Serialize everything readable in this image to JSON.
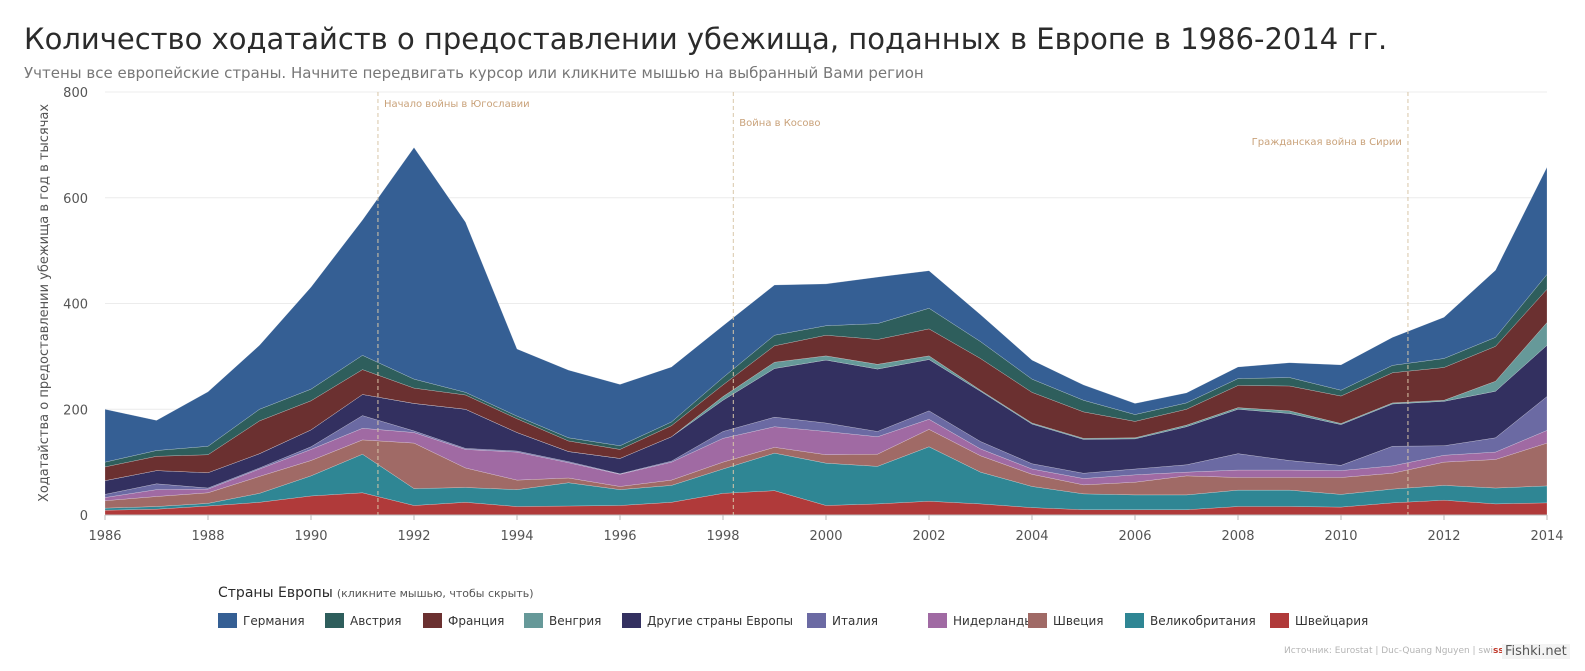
{
  "title": "Количество ходатайств о предоставлении убежища, поданных в Европе в 1986-2014 гг.",
  "subtitle": "Учтены все европейские страны. Начните передвигать курсор или кликните мышью на выбранный Вами регион",
  "legend": {
    "title": "Страны Европы",
    "hint": "(кликните мышью, чтобы скрыть)"
  },
  "source": "Источник: Eurostat | Duc-Quang Nguyen | swi",
  "source_suffix": "ssinfo.ch",
  "watermark": "Fishki.net",
  "chart_data": {
    "type": "area",
    "stacked": true,
    "ylabel": "Ходатайства о предоставлении убежища в год в тысячах",
    "xlabel": "",
    "ylim": [
      0,
      800
    ],
    "yticks": [
      0,
      200,
      400,
      600,
      800
    ],
    "xticks": [
      1986,
      1988,
      1990,
      1992,
      1994,
      1996,
      1998,
      2000,
      2002,
      2004,
      2006,
      2008,
      2010,
      2012,
      2014
    ],
    "x": [
      1986,
      1987,
      1988,
      1989,
      1990,
      1991,
      1992,
      1993,
      1994,
      1995,
      1996,
      1997,
      1998,
      1999,
      2000,
      2001,
      2002,
      2003,
      2004,
      2005,
      2006,
      2007,
      2008,
      2009,
      2010,
      2011,
      2012,
      2013,
      2014
    ],
    "grid": true,
    "events": [
      {
        "year": 1991.3,
        "label": "Начало войны в Югославии"
      },
      {
        "year": 1998.2,
        "label": "Война в Косово"
      },
      {
        "year": 2011.3,
        "label": "Гражданская война в Сирии"
      }
    ],
    "series": [
      {
        "name": "Швейцария",
        "color": "#b03a3a",
        "values": [
          9,
          11,
          17,
          24,
          36,
          42,
          18,
          24,
          16,
          17,
          18,
          24,
          41,
          46,
          18,
          21,
          26,
          21,
          14,
          10,
          10,
          10,
          16,
          16,
          15,
          23,
          28,
          21,
          23
        ]
      },
      {
        "name": "Великобритания",
        "color": "#2f8694",
        "values": [
          4,
          5,
          5,
          17,
          38,
          73,
          32,
          28,
          32,
          44,
          30,
          32,
          46,
          71,
          80,
          71,
          103,
          60,
          40,
          30,
          28,
          28,
          31,
          31,
          24,
          26,
          28,
          30,
          32
        ]
      },
      {
        "name": "Швеция",
        "color": "#a06a66",
        "values": [
          14,
          19,
          20,
          32,
          29,
          27,
          86,
          37,
          18,
          9,
          6,
          10,
          13,
          11,
          16,
          23,
          33,
          31,
          23,
          17,
          24,
          36,
          24,
          24,
          32,
          30,
          44,
          54,
          81
        ]
      },
      {
        "name": "Нидерланды",
        "color": "#a06aa3",
        "values": [
          6,
          13,
          7,
          14,
          21,
          22,
          20,
          35,
          53,
          29,
          23,
          34,
          45,
          39,
          44,
          33,
          19,
          13,
          10,
          12,
          14,
          7,
          14,
          14,
          13,
          14,
          13,
          14,
          24
        ]
      },
      {
        "name": "Италия",
        "color": "#6b6aa3",
        "values": [
          6,
          11,
          2,
          2,
          5,
          24,
          3,
          2,
          2,
          2,
          1,
          2,
          13,
          18,
          16,
          10,
          16,
          14,
          10,
          10,
          11,
          14,
          31,
          18,
          10,
          37,
          18,
          27,
          64
        ]
      },
      {
        "name": "Другие страны Европы",
        "color": "#333060",
        "values": [
          26,
          25,
          29,
          27,
          32,
          40,
          52,
          74,
          35,
          19,
          29,
          46,
          59,
          92,
          119,
          118,
          97,
          95,
          75,
          64,
          57,
          72,
          84,
          89,
          77,
          80,
          84,
          88,
          97
        ]
      },
      {
        "name": "Венгрия",
        "color": "#669999",
        "values": [
          0,
          0,
          0,
          0,
          0,
          0,
          0,
          0,
          0,
          0,
          0,
          0,
          7,
          12,
          8,
          9,
          7,
          2,
          2,
          2,
          2,
          3,
          3,
          5,
          2,
          2,
          2,
          19,
          43
        ]
      },
      {
        "name": "Франция",
        "color": "#6b3030",
        "values": [
          26,
          27,
          34,
          62,
          55,
          47,
          29,
          27,
          26,
          20,
          17,
          21,
          22,
          31,
          39,
          47,
          51,
          60,
          58,
          50,
          31,
          30,
          42,
          47,
          52,
          57,
          62,
          66,
          63
        ]
      },
      {
        "name": "Австрия",
        "color": "#2e5e5c",
        "values": [
          9,
          11,
          16,
          22,
          22,
          27,
          17,
          5,
          5,
          6,
          7,
          7,
          14,
          20,
          18,
          30,
          39,
          32,
          25,
          22,
          13,
          12,
          13,
          16,
          11,
          14,
          17,
          17,
          28
        ]
      },
      {
        "name": "Германия",
        "color": "#355f94",
        "values": [
          100,
          57,
          103,
          121,
          193,
          256,
          438,
          322,
          127,
          128,
          116,
          104,
          98,
          95,
          79,
          88,
          71,
          51,
          36,
          29,
          21,
          19,
          22,
          28,
          48,
          53,
          78,
          127,
          203
        ]
      }
    ]
  }
}
